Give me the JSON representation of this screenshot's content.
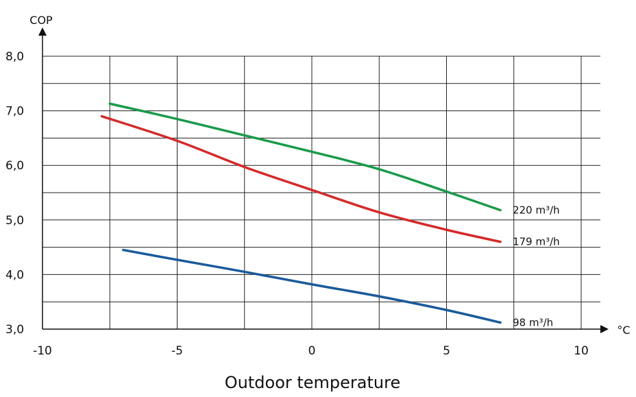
{
  "chart_data": {
    "type": "line",
    "xlabel": "Outdoor temperature",
    "ylabel": "COP",
    "x_unit": "°C",
    "xlim": [
      -10,
      10
    ],
    "ylim": [
      3.0,
      8.0
    ],
    "x_ticks": [
      "-10",
      "-5",
      "0",
      "5",
      "10"
    ],
    "y_ticks": [
      "3,0",
      "4,0",
      "5,0",
      "6,0",
      "7,0",
      "8,0"
    ],
    "grid": true,
    "series": [
      {
        "name": "220 m³/h",
        "color": "#1a9a4a",
        "x": [
          -7.5,
          -5,
          -2.5,
          0,
          2.5,
          5,
          7
        ],
        "y": [
          7.13,
          6.85,
          6.55,
          6.25,
          5.93,
          5.52,
          5.18
        ]
      },
      {
        "name": "179 m³/h",
        "color": "#d42a2a",
        "x": [
          -7.8,
          -5,
          -2.5,
          0,
          2.5,
          5,
          7
        ],
        "y": [
          6.9,
          6.45,
          5.97,
          5.55,
          5.14,
          4.82,
          4.6
        ]
      },
      {
        "name": "98 m³/h",
        "color": "#1a5a9a",
        "x": [
          -7,
          -5,
          -2.5,
          0,
          2.5,
          5,
          7
        ],
        "y": [
          4.45,
          4.27,
          4.05,
          3.82,
          3.6,
          3.35,
          3.12
        ]
      }
    ]
  }
}
